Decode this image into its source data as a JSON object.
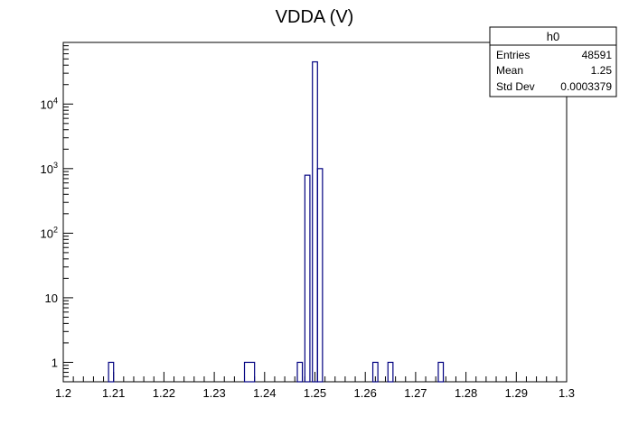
{
  "chart_data": {
    "type": "histogram",
    "title": "VDDA (V)",
    "xlabel": "",
    "ylabel": "",
    "xlim": [
      1.2,
      1.3
    ],
    "ylim": [
      0.5,
      90000
    ],
    "y_scale": "log",
    "grid": false,
    "x_ticks": [
      "1.2",
      "1.21",
      "1.22",
      "1.23",
      "1.24",
      "1.25",
      "1.26",
      "1.27",
      "1.28",
      "1.29",
      "1.3"
    ],
    "y_ticks": [
      {
        "value": 1,
        "base": "1",
        "exp": ""
      },
      {
        "value": 10,
        "base": "10",
        "exp": ""
      },
      {
        "value": 100,
        "base": "10",
        "exp": "2"
      },
      {
        "value": 1000,
        "base": "10",
        "exp": "3"
      },
      {
        "value": 10000,
        "base": "10",
        "exp": "4"
      }
    ],
    "series": [
      {
        "color": "#000080",
        "bins": [
          {
            "x0": 1.209,
            "x1": 1.21,
            "count": 1
          },
          {
            "x0": 1.236,
            "x1": 1.238,
            "count": 1
          },
          {
            "x0": 1.2465,
            "x1": 1.2475,
            "count": 1
          },
          {
            "x0": 1.248,
            "x1": 1.249,
            "count": 790
          },
          {
            "x0": 1.2495,
            "x1": 1.2505,
            "count": 45000
          },
          {
            "x0": 1.2505,
            "x1": 1.2515,
            "count": 1000
          },
          {
            "x0": 1.2615,
            "x1": 1.2625,
            "count": 1
          },
          {
            "x0": 1.2645,
            "x1": 1.2655,
            "count": 1
          },
          {
            "x0": 1.2745,
            "x1": 1.2755,
            "count": 1
          }
        ]
      }
    ],
    "stats_box": {
      "name": "h0",
      "rows": [
        {
          "label": "Entries",
          "value": "48591"
        },
        {
          "label": "Mean",
          "value": "1.25"
        },
        {
          "label": "Std Dev",
          "value": "0.0003379"
        }
      ]
    }
  }
}
